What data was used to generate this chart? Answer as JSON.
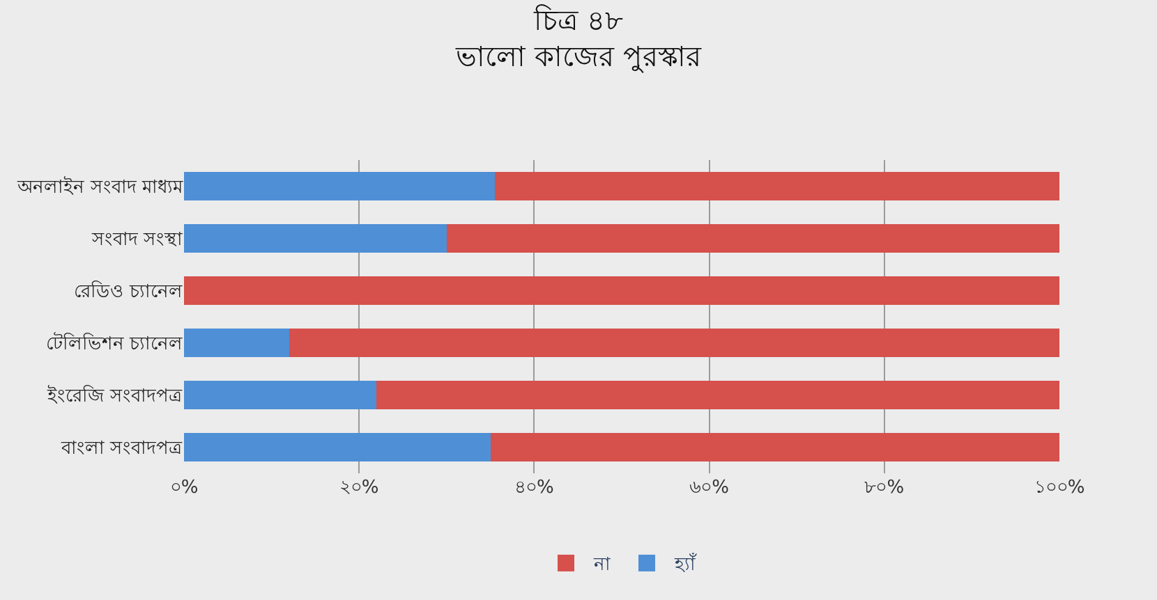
{
  "chart_data": {
    "type": "bar",
    "title": "চিত্র ৪৮",
    "subtitle": "ভালো কাজের পুরস্কার",
    "orientation": "horizontal",
    "stacked": true,
    "categories": [
      "অনলাইন সংবাদ মাধ্যম",
      "সংবাদ সংস্থা",
      "রেডিও চ্যানেল",
      "টেলিভিশন চ্যানেল",
      "ইংরেজি সংবাদপত্র",
      "বাংলা সংবাদপত্র"
    ],
    "series": [
      {
        "name": "হ্যাঁ",
        "color": "#4f8fd6",
        "values": [
          35.5,
          30,
          0,
          12,
          22,
          35
        ]
      },
      {
        "name": "না",
        "color": "#d6504c",
        "values": [
          64.5,
          70,
          100,
          88,
          78,
          65
        ]
      }
    ],
    "xlim": [
      0,
      100
    ],
    "xticks": [
      {
        "value": 0,
        "label": "০%"
      },
      {
        "value": 20,
        "label": "২০%"
      },
      {
        "value": 40,
        "label": "৪০%"
      },
      {
        "value": 60,
        "label": "৬০%"
      },
      {
        "value": 80,
        "label": "৮০%"
      },
      {
        "value": 100,
        "label": "১০০%"
      }
    ],
    "grid": "x",
    "legend": "bottom"
  }
}
